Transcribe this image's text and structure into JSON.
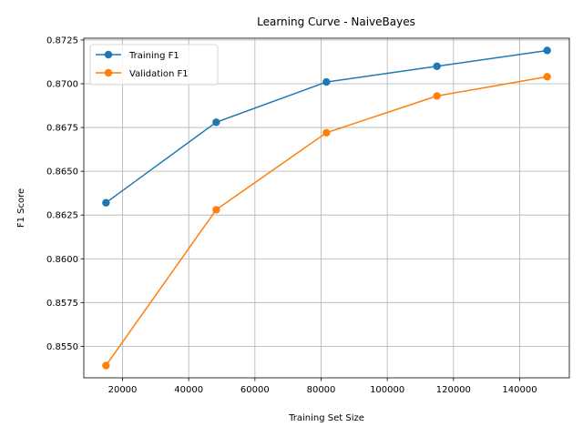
{
  "chart_data": {
    "type": "line",
    "title": "Learning Curve - NaiveBayes",
    "xlabel": "Training Set Size",
    "ylabel": "F1 Score",
    "x": [
      15000,
      48300,
      81600,
      115000,
      148300
    ],
    "series": [
      {
        "name": "Training F1",
        "color": "#1f77b4",
        "values": [
          0.8632,
          0.8678,
          0.8701,
          0.871,
          0.8719
        ]
      },
      {
        "name": "Validation F1",
        "color": "#ff7f0e",
        "values": [
          0.8539,
          0.8628,
          0.8672,
          0.8693,
          0.8704
        ]
      }
    ],
    "xlim": [
      8300,
      155000
    ],
    "ylim": [
      0.8532,
      0.8726
    ],
    "xticks": [
      20000,
      40000,
      60000,
      80000,
      100000,
      120000,
      140000
    ],
    "xtick_labels": [
      "20000",
      "40000",
      "60000",
      "80000",
      "100000",
      "120000",
      "140000"
    ],
    "yticks": [
      0.855,
      0.8575,
      0.86,
      0.8625,
      0.865,
      0.8675,
      0.87,
      0.8725
    ],
    "ytick_labels": [
      "0.8550",
      "0.8575",
      "0.8600",
      "0.8625",
      "0.8650",
      "0.8675",
      "0.8700",
      "0.8725"
    ],
    "grid": true,
    "legend": "upper-left"
  }
}
